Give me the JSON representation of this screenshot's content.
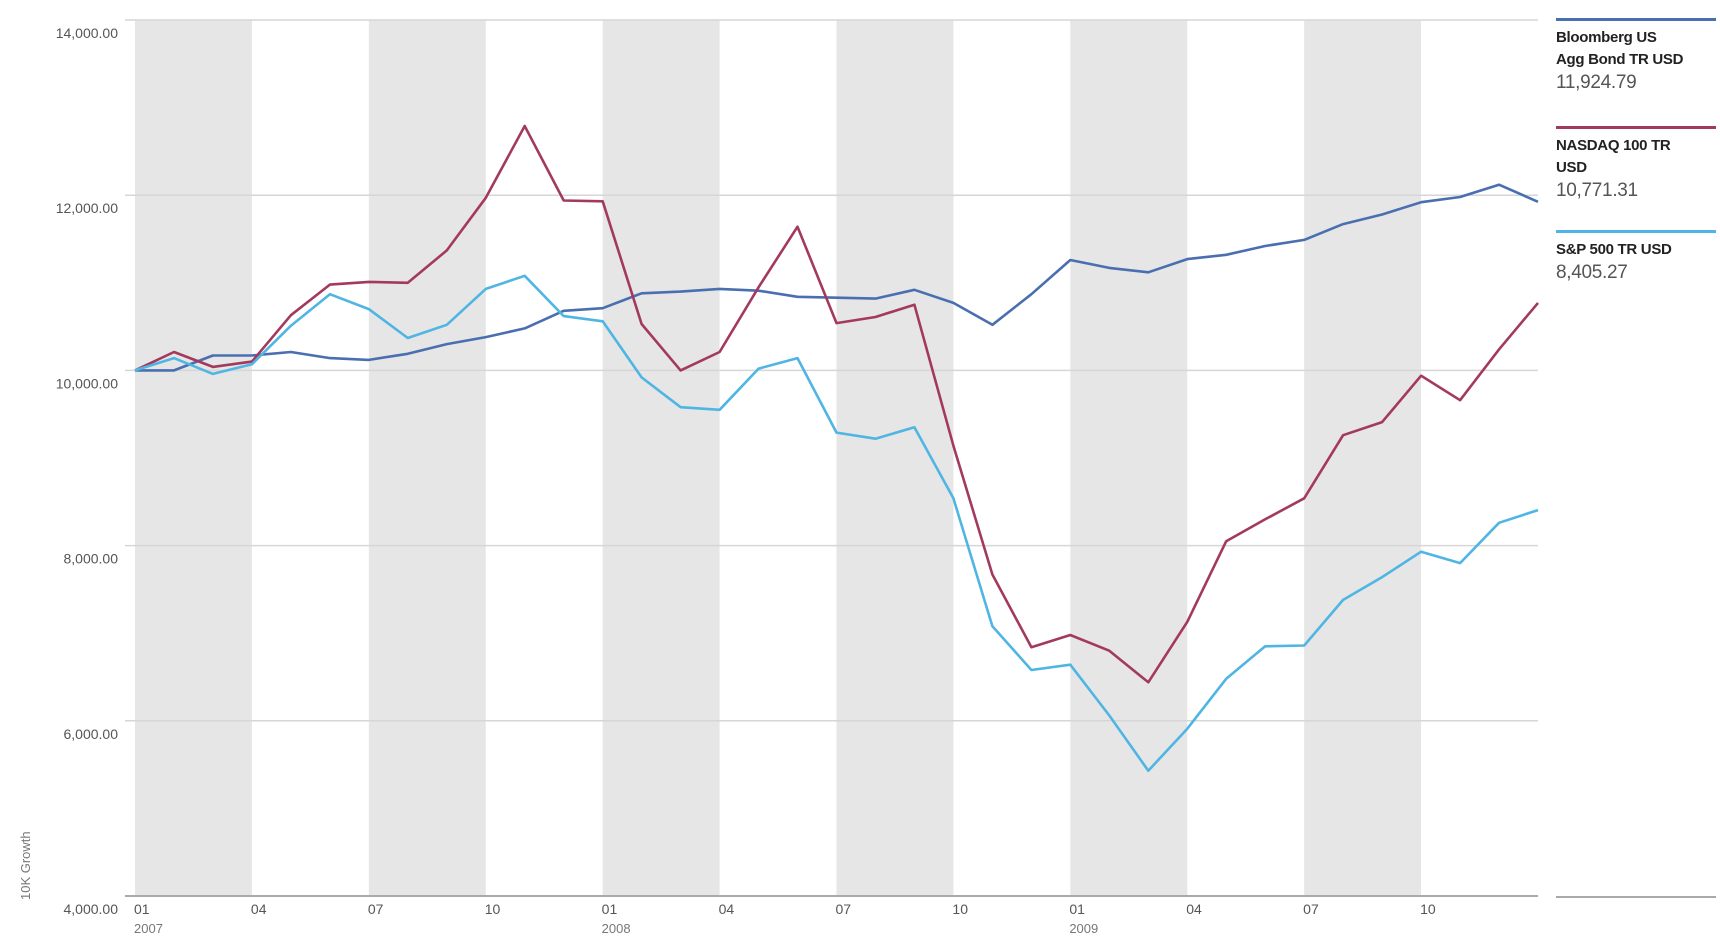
{
  "chart_data": {
    "type": "line",
    "ylabel": "10K Growth",
    "ylim": [
      4000,
      14000
    ],
    "yticks": [
      {
        "value": 4000,
        "label": "4,000.00"
      },
      {
        "value": 6000,
        "label": "6,000.00"
      },
      {
        "value": 8000,
        "label": "8,000.00"
      },
      {
        "value": 10000,
        "label": "10,000.00"
      },
      {
        "value": 12000,
        "label": "12,000.00"
      },
      {
        "value": 14000,
        "label": "14,000.00"
      }
    ],
    "x": [
      "2007-01",
      "2007-02",
      "2007-03",
      "2007-04",
      "2007-05",
      "2007-06",
      "2007-07",
      "2007-08",
      "2007-09",
      "2007-10",
      "2007-11",
      "2007-12",
      "2008-01",
      "2008-02",
      "2008-03",
      "2008-04",
      "2008-05",
      "2008-06",
      "2008-07",
      "2008-08",
      "2008-09",
      "2008-10",
      "2008-11",
      "2008-12",
      "2009-01",
      "2009-02",
      "2009-03",
      "2009-04",
      "2009-05",
      "2009-06",
      "2009-07",
      "2009-08",
      "2009-09",
      "2009-10",
      "2009-11",
      "2009-12",
      "2010-01"
    ],
    "xticks": [
      {
        "x": "2007-01",
        "label": "01",
        "year": "2007"
      },
      {
        "x": "2007-04",
        "label": "04",
        "year": ""
      },
      {
        "x": "2007-07",
        "label": "07",
        "year": ""
      },
      {
        "x": "2007-10",
        "label": "10",
        "year": ""
      },
      {
        "x": "2008-01",
        "label": "01",
        "year": "2008"
      },
      {
        "x": "2008-04",
        "label": "04",
        "year": ""
      },
      {
        "x": "2008-07",
        "label": "07",
        "year": ""
      },
      {
        "x": "2008-10",
        "label": "10",
        "year": ""
      },
      {
        "x": "2009-01",
        "label": "01",
        "year": "2009"
      },
      {
        "x": "2009-04",
        "label": "04",
        "year": ""
      },
      {
        "x": "2009-07",
        "label": "07",
        "year": ""
      },
      {
        "x": "2009-10",
        "label": "10",
        "year": ""
      }
    ],
    "shaded_bands": [
      [
        "2007-01",
        "2007-04"
      ],
      [
        "2007-07",
        "2007-10"
      ],
      [
        "2008-01",
        "2008-04"
      ],
      [
        "2008-07",
        "2008-10"
      ],
      [
        "2009-01",
        "2009-04"
      ],
      [
        "2009-07",
        "2009-10"
      ]
    ],
    "grid": true,
    "legend_position": "right",
    "series": [
      {
        "name": "Bloomberg US Agg Bond TR USD",
        "name_lines": [
          "Bloomberg US",
          "Agg Bond TR USD"
        ],
        "final_value": "11,924.79",
        "color": "#4a6fb0",
        "values": [
          10000,
          10000,
          10170,
          10170,
          10210,
          10140,
          10120,
          10190,
          10300,
          10380,
          10480,
          10680,
          10710,
          10880,
          10900,
          10930,
          10910,
          10840,
          10830,
          10820,
          10920,
          10770,
          10520,
          10870,
          11260,
          11170,
          11120,
          11270,
          11320,
          11420,
          11490,
          11670,
          11780,
          11920,
          11980,
          12120,
          11925
        ]
      },
      {
        "name": "NASDAQ 100 TR USD",
        "name_lines": [
          "NASDAQ 100 TR",
          "USD"
        ],
        "final_value": "10,771.31",
        "color": "#a33a5e",
        "values": [
          10000,
          10210,
          10040,
          10100,
          10630,
          10980,
          11010,
          11000,
          11370,
          11970,
          12790,
          11940,
          11930,
          10530,
          10000,
          10210,
          10950,
          11640,
          10540,
          10610,
          10750,
          9140,
          7670,
          6840,
          6980,
          6800,
          6440,
          7130,
          8050,
          8300,
          8540,
          9260,
          9410,
          9940,
          9660,
          10240,
          10771
        ]
      },
      {
        "name": "S&P 500 TR USD",
        "name_lines": [
          "S&P 500 TR USD"
        ],
        "final_value": "8,405.27",
        "color": "#4fb5e3",
        "values": [
          10000,
          10140,
          9960,
          10070,
          10510,
          10870,
          10700,
          10370,
          10520,
          10930,
          11080,
          10620,
          10560,
          9920,
          9580,
          9550,
          10020,
          10140,
          9290,
          9220,
          9350,
          8540,
          7080,
          6580,
          6640,
          6060,
          5430,
          5910,
          6480,
          6850,
          6860,
          7380,
          7640,
          7930,
          7800,
          8260,
          8405
        ]
      }
    ]
  }
}
